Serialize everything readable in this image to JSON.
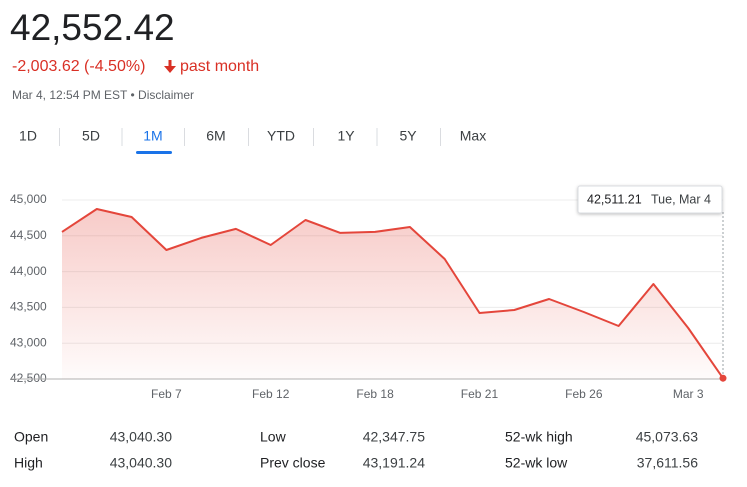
{
  "header": {
    "price": "42,552.42",
    "change": "-2,003.62 (-4.50%)",
    "period": "past month",
    "timestamp": "Mar 4, 12:54 PM EST • Disclaimer"
  },
  "tabs": {
    "items": [
      "1D",
      "5D",
      "1M",
      "6M",
      "YTD",
      "1Y",
      "5Y",
      "Max"
    ],
    "selected": 2
  },
  "chart_data": {
    "type": "line",
    "categories": [
      null,
      null,
      null,
      "Feb 7",
      null,
      null,
      "Feb 12",
      null,
      null,
      "Feb 18",
      null,
      null,
      "Feb 21",
      null,
      null,
      "Feb 26",
      null,
      null,
      "Mar 3",
      null
    ],
    "series": [
      {
        "color": "#e4463b",
        "values": [
          44554,
          44875,
          44763,
          44302,
          44470,
          44596,
          44372,
          44721,
          44540,
          44554,
          44623,
          44176,
          43422,
          43464,
          43618,
          43436,
          43240,
          43827,
          43212,
          42511.21
        ]
      }
    ],
    "ylim": [
      42500,
      45000
    ],
    "yticks": [
      {
        "value": 42500,
        "label": "42,500"
      },
      {
        "value": 43000,
        "label": "43,000"
      },
      {
        "value": 43500,
        "label": "43,500"
      },
      {
        "value": 44000,
        "label": "44,000"
      },
      {
        "value": 44500,
        "label": "44,500"
      },
      {
        "value": 45000,
        "label": "45,000"
      }
    ],
    "grid": true,
    "tooltip": {
      "value": "42,511.21",
      "date": "Tue, Mar 4"
    }
  },
  "stats": [
    [
      "Open",
      "43,040.30"
    ],
    [
      "High",
      "43,040.30"
    ],
    [
      "Low",
      "42,347.75"
    ],
    [
      "Prev close",
      "43,191.24"
    ],
    [
      "52-wk high",
      "45,073.63"
    ],
    [
      "52-wk low",
      "37,611.56"
    ]
  ]
}
